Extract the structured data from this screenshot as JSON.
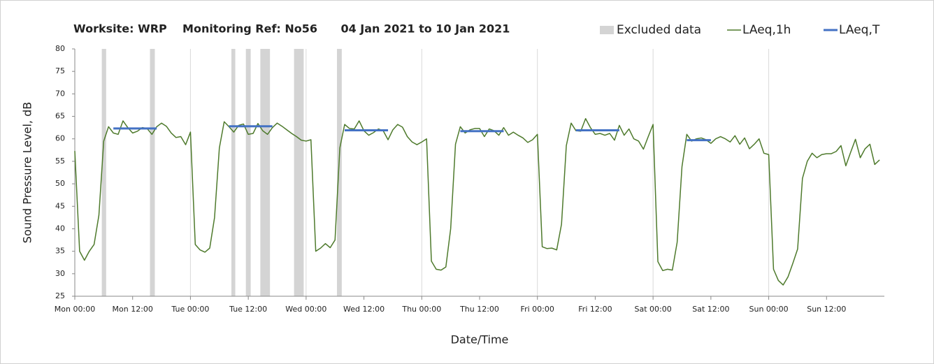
{
  "chart_data": {
    "type": "line",
    "title": "Worksite: WRP    Monitoring Ref: No56      04 Jan 2021 to 10 Jan 2021",
    "xlabel": "Date/Time",
    "ylabel": "Sound Pressure Level, dB",
    "xlim": [
      0,
      168
    ],
    "ylim": [
      25,
      80
    ],
    "grid": true,
    "xticks": [
      {
        "value": 0,
        "label": "Mon 00:00"
      },
      {
        "value": 12,
        "label": "Mon 12:00"
      },
      {
        "value": 24,
        "label": "Tue 00:00"
      },
      {
        "value": 36,
        "label": "Tue 12:00"
      },
      {
        "value": 48,
        "label": "Wed 00:00"
      },
      {
        "value": 60,
        "label": "Wed 12:00"
      },
      {
        "value": 72,
        "label": "Thu 00:00"
      },
      {
        "value": 84,
        "label": "Thu 12:00"
      },
      {
        "value": 96,
        "label": "Fri 00:00"
      },
      {
        "value": 108,
        "label": "Fri 12:00"
      },
      {
        "value": 120,
        "label": "Sat 00:00"
      },
      {
        "value": 132,
        "label": "Sat 12:00"
      },
      {
        "value": 144,
        "label": "Sun 00:00"
      },
      {
        "value": 156,
        "label": "Sun 12:00"
      }
    ],
    "yticks": [
      25,
      30,
      35,
      40,
      45,
      50,
      55,
      60,
      65,
      70,
      75,
      80
    ],
    "excluded": {
      "name": "Excluded data",
      "color": "#d4d4d4",
      "ranges": [
        {
          "start": 5.6,
          "end": 6.5
        },
        {
          "start": 15.6,
          "end": 16.6
        },
        {
          "start": 32.5,
          "end": 33.3
        },
        {
          "start": 35.5,
          "end": 36.5
        },
        {
          "start": 38.5,
          "end": 40.5
        },
        {
          "start": 45.5,
          "end": 47.5
        },
        {
          "start": 54.4,
          "end": 55.4
        }
      ]
    },
    "series": [
      {
        "name": "LAeq,1h",
        "color": "#4e7a2c",
        "x": [
          0,
          1,
          2,
          3,
          4,
          5,
          6,
          7,
          8,
          9,
          10,
          11,
          12,
          13,
          14,
          15,
          16,
          17,
          18,
          19,
          20,
          21,
          22,
          23,
          24,
          25,
          26,
          27,
          28,
          29,
          30,
          31,
          32,
          33,
          34,
          35,
          36,
          37,
          38,
          39,
          40,
          41,
          42,
          43,
          44,
          45,
          46,
          47,
          48,
          49,
          50,
          51,
          52,
          53,
          54,
          55,
          56,
          57,
          58,
          59,
          60,
          61,
          62,
          63,
          64,
          65,
          66,
          67,
          68,
          69,
          70,
          71,
          72,
          73,
          74,
          75,
          76,
          77,
          78,
          79,
          80,
          81,
          82,
          83,
          84,
          85,
          86,
          87,
          88,
          89,
          90,
          91,
          92,
          93,
          94,
          95,
          96,
          97,
          98,
          99,
          100,
          101,
          102,
          103,
          104,
          105,
          106,
          107,
          108,
          109,
          110,
          111,
          112,
          113,
          114,
          115,
          116,
          117,
          118,
          119,
          120,
          121,
          122,
          123,
          124,
          125,
          126,
          127,
          128,
          129,
          130,
          131,
          132,
          133,
          134,
          135,
          136,
          137,
          138,
          139,
          140,
          141,
          142,
          143,
          144,
          145,
          146,
          147,
          148,
          149,
          150,
          151,
          152,
          153,
          154,
          155,
          156,
          157,
          158,
          159,
          160,
          161,
          162,
          163,
          164,
          165,
          166,
          167
        ],
        "values": [
          57.3,
          35,
          33,
          35,
          36.5,
          43,
          59.5,
          62.7,
          61.3,
          61,
          64,
          62.5,
          61.3,
          61.7,
          62.5,
          62.3,
          61,
          62.7,
          63.5,
          62.8,
          61.3,
          60.3,
          60.5,
          58.7,
          61.5,
          36.5,
          35.3,
          34.8,
          35.7,
          42.5,
          58,
          63.8,
          62.7,
          61.5,
          63,
          63.3,
          61,
          61.2,
          63.4,
          61.8,
          61,
          62.5,
          63.5,
          62.8,
          62,
          61.2,
          60.5,
          59.7,
          59.5,
          59.8,
          35,
          35.7,
          36.7,
          35.8,
          37.5,
          58,
          63.2,
          62.3,
          62.2,
          64,
          61.8,
          60.8,
          61.4,
          62.2,
          61.8,
          59.8,
          62,
          63.2,
          62.6,
          60.5,
          59.3,
          58.7,
          59.3,
          60,
          32.8,
          31,
          30.8,
          31.5,
          40,
          58.8,
          62.7,
          61.3,
          62,
          62.3,
          62.3,
          60.5,
          62.2,
          61.8,
          60.8,
          62.5,
          60.8,
          61.5,
          60.8,
          60.2,
          59.2,
          59.8,
          61,
          36,
          35.6,
          35.7,
          35.3,
          41,
          58.5,
          63.5,
          61.8,
          61.7,
          64.5,
          62.5,
          61,
          61.2,
          60.8,
          61.2,
          59.7,
          63,
          60.8,
          62.2,
          60,
          59.5,
          57.7,
          60.5,
          63.2,
          32.7,
          30.7,
          31,
          30.8,
          37,
          53.8,
          61,
          59.5,
          60,
          60.2,
          59.8,
          59,
          60,
          60.5,
          60,
          59.3,
          60.7,
          58.8,
          60.2,
          57.8,
          58.8,
          60,
          56.8,
          56.5,
          31,
          28.5,
          27.5,
          29.3,
          32.3,
          35.5,
          51.2,
          55,
          56.8,
          55.8,
          56.5,
          56.7,
          56.7,
          57.2,
          58.5,
          54,
          57,
          59.9,
          55.8,
          57.8,
          58.8,
          54.3,
          55.3
        ]
      }
    ],
    "periods": {
      "name": "LAeq,T",
      "color": "#4472c4",
      "items": [
        {
          "start": 8,
          "end": 17,
          "value": 62.3
        },
        {
          "start": 32,
          "end": 41,
          "value": 62.8
        },
        {
          "start": 56,
          "end": 65,
          "value": 61.9
        },
        {
          "start": 80,
          "end": 89,
          "value": 61.7
        },
        {
          "start": 104,
          "end": 113,
          "value": 61.9
        },
        {
          "start": 127,
          "end": 132,
          "value": 59.7
        }
      ]
    }
  }
}
